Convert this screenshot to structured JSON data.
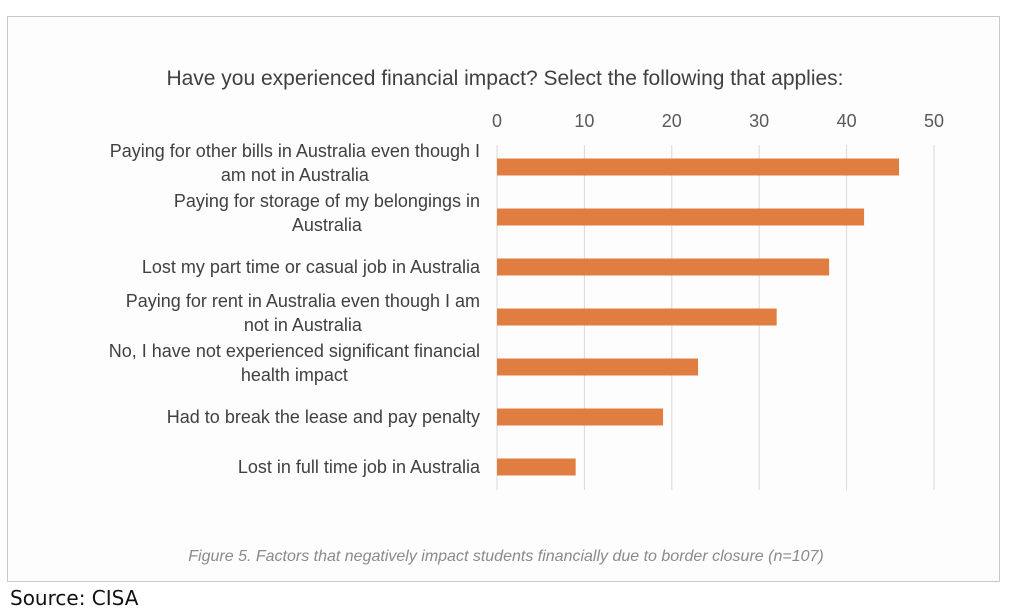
{
  "caption": "Figure 5. Factors that negatively impact students financially due to border closure (n=107)",
  "source": "Source: CISA",
  "colors": {
    "bar": "#e07e41",
    "grid": "#d9d9d9"
  },
  "chart_data": {
    "type": "bar",
    "orientation": "horizontal",
    "title": "Have you experienced financial impact? Select the following that applies:",
    "categories": [
      [
        "Paying for other bills in Australia even though I",
        "am not in Australia"
      ],
      [
        "Paying for storage of my belongings in",
        "Australia"
      ],
      [
        "Lost my part time or casual job in Australia"
      ],
      [
        "Paying for rent in Australia even though I am",
        "not in Australia"
      ],
      [
        "No, I have not experienced significant financial",
        "health impact"
      ],
      [
        "Had to break the lease and pay penalty"
      ],
      [
        "Lost in full time job in Australia"
      ]
    ],
    "values": [
      46,
      42,
      38,
      32,
      23,
      19,
      9
    ],
    "xlim": [
      0,
      50
    ],
    "xticks": [
      0,
      10,
      20,
      30,
      40,
      50
    ],
    "axis_position": "top",
    "grid": true,
    "legend": "none"
  }
}
